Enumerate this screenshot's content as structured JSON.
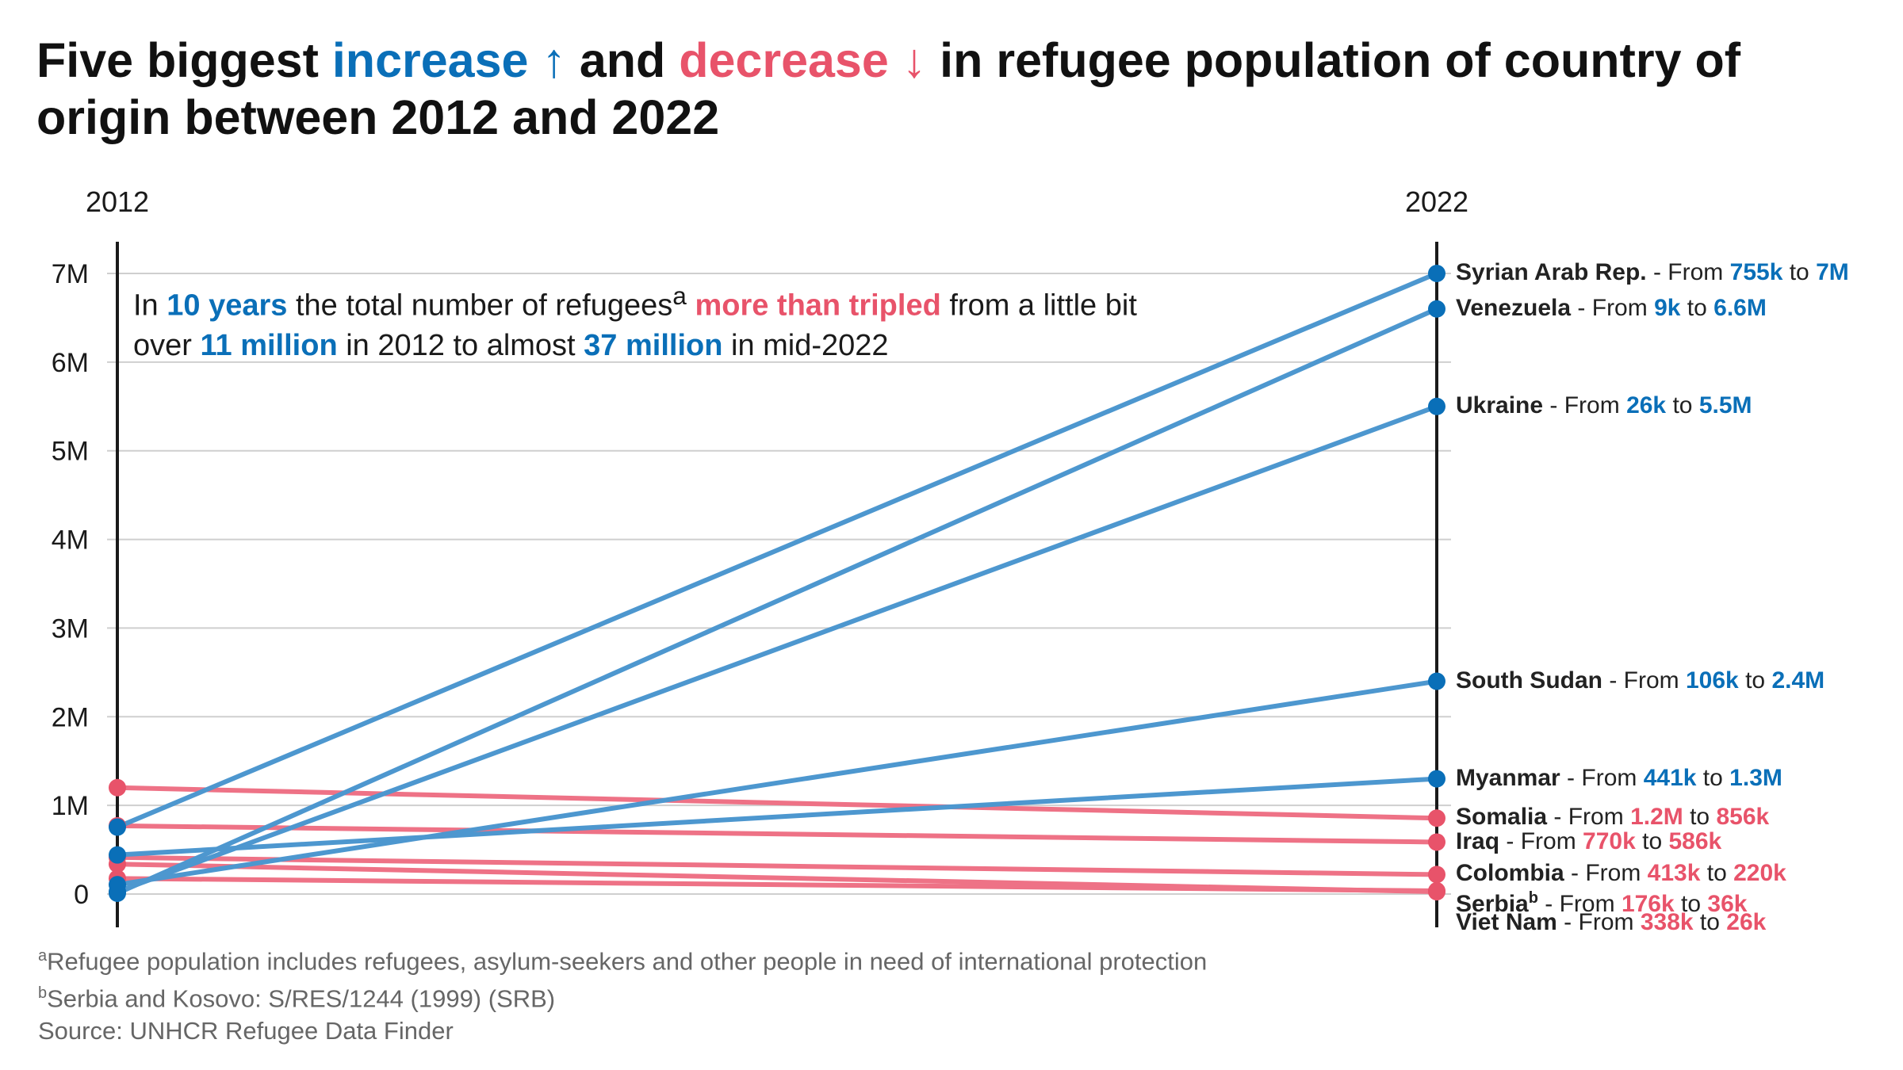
{
  "title": {
    "part1": "Five biggest ",
    "increase": "increase ↑",
    "part2": " and ",
    "decrease": "decrease ↓",
    "part3": " in refugee population of country of origin between 2012 and 2022"
  },
  "annotation": {
    "t1": "In ",
    "t2": "10 years",
    "t3": " the total number of refugees",
    "sup": "a",
    "t4": " ",
    "t5": "more than tripled",
    "t6": " from a little bit over ",
    "t7": "11 million",
    "t8": " in 2012 to almost ",
    "t9": "37 million",
    "t10": " in mid-2022"
  },
  "colors": {
    "increase": "#0a6fb8",
    "decrease": "#e8536a",
    "increase_line": "#4d97cf",
    "decrease_line": "#ee7286"
  },
  "footnotes": {
    "a_mark": "a",
    "a_text": "Refugee population includes refugees, asylum-seekers and other people in need of international protection",
    "b_mark": "b",
    "b_text": "Serbia and Kosovo: S/RES/1244 (1999) (SRB)",
    "source": "Source: UNHCR Refugee Data Finder"
  },
  "chart_data": {
    "type": "slope",
    "x": [
      "2012",
      "2022"
    ],
    "ylim": [
      0,
      7000000
    ],
    "yticks": [
      0,
      1000000,
      2000000,
      3000000,
      4000000,
      5000000,
      6000000,
      7000000
    ],
    "ytick_labels": [
      "0",
      "1M",
      "2M",
      "3M",
      "4M",
      "5M",
      "6M",
      "7M"
    ],
    "grid": true,
    "series": [
      {
        "name": "Syrian Arab Rep.",
        "group": "increase",
        "values": [
          755000,
          7000000
        ],
        "from_label": "755k",
        "to_label": "7M"
      },
      {
        "name": "Venezuela",
        "group": "increase",
        "values": [
          9000,
          6600000
        ],
        "from_label": "9k",
        "to_label": "6.6M"
      },
      {
        "name": "Ukraine",
        "group": "increase",
        "values": [
          26000,
          5500000
        ],
        "from_label": "26k",
        "to_label": "5.5M"
      },
      {
        "name": "South Sudan",
        "group": "increase",
        "values": [
          106000,
          2400000
        ],
        "from_label": "106k",
        "to_label": "2.4M"
      },
      {
        "name": "Myanmar",
        "group": "increase",
        "values": [
          441000,
          1300000
        ],
        "from_label": "441k",
        "to_label": "1.3M"
      },
      {
        "name": "Somalia",
        "group": "decrease",
        "values": [
          1200000,
          856000
        ],
        "from_label": "1.2M",
        "to_label": "856k"
      },
      {
        "name": "Iraq",
        "group": "decrease",
        "values": [
          770000,
          586000
        ],
        "from_label": "770k",
        "to_label": "586k"
      },
      {
        "name": "Colombia",
        "group": "decrease",
        "values": [
          413000,
          220000
        ],
        "from_label": "413k",
        "to_label": "220k"
      },
      {
        "name": "Serbia",
        "name_sup": "b",
        "group": "decrease",
        "values": [
          176000,
          36000
        ],
        "from_label": "176k",
        "to_label": "36k"
      },
      {
        "name": "Viet Nam",
        "group": "decrease",
        "values": [
          338000,
          26000
        ],
        "from_label": "338k",
        "to_label": "26k"
      }
    ],
    "label_words": {
      "sep": " - From ",
      "to": " to "
    }
  }
}
